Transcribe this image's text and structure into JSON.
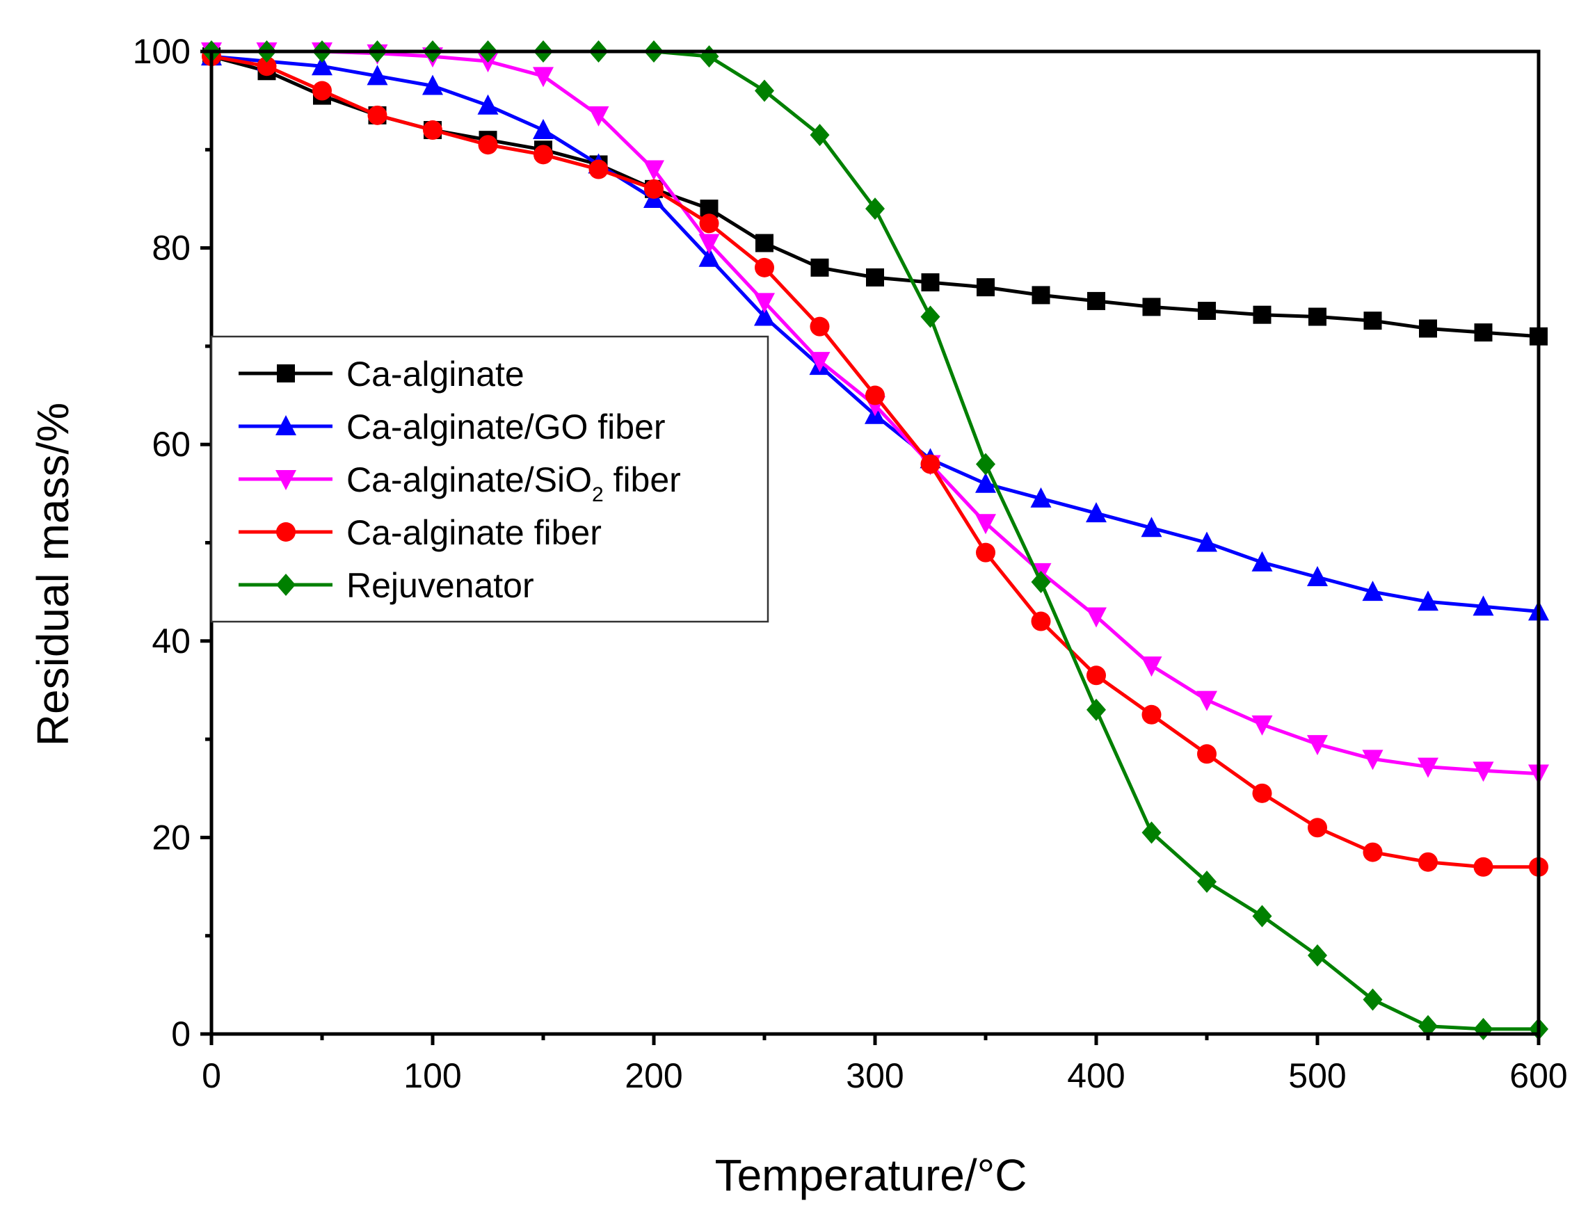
{
  "chart_data": {
    "type": "line",
    "title": "",
    "xlabel": "Temperature/°C",
    "ylabel": "Residual mass/%",
    "xlim": [
      0,
      600
    ],
    "ylim": [
      0,
      100
    ],
    "xticks": [
      0,
      100,
      200,
      300,
      400,
      500,
      600
    ],
    "yticks": [
      0,
      20,
      40,
      60,
      80,
      100
    ],
    "grid": false,
    "legend_position": "middle-left",
    "series": [
      {
        "name": "Ca-alginate",
        "legend_main": "Ca-alginate",
        "legend_sub": "",
        "legend_tail": "",
        "color": "#000000",
        "marker": "square",
        "x": [
          0,
          25,
          50,
          75,
          100,
          125,
          150,
          175,
          200,
          225,
          250,
          275,
          300,
          325,
          350,
          375,
          400,
          425,
          450,
          475,
          500,
          525,
          550,
          575,
          600
        ],
        "y": [
          99.5,
          98,
          95.5,
          93.5,
          92,
          91,
          90,
          88.5,
          86,
          84,
          80.5,
          78,
          77,
          76.5,
          76,
          75.2,
          74.6,
          74,
          73.6,
          73.2,
          73,
          72.6,
          71.8,
          71.4,
          71
        ]
      },
      {
        "name": "Ca-alginate/GO fiber",
        "legend_main": "Ca-alginate/GO fiber",
        "legend_sub": "",
        "legend_tail": "",
        "color": "#0000ff",
        "marker": "triangle-up",
        "x": [
          0,
          25,
          50,
          75,
          100,
          125,
          150,
          175,
          200,
          225,
          250,
          275,
          300,
          325,
          350,
          375,
          400,
          425,
          450,
          475,
          500,
          525,
          550,
          575,
          600
        ],
        "y": [
          99.5,
          99,
          98.5,
          97.5,
          96.5,
          94.5,
          92,
          88.5,
          85,
          79,
          73,
          68,
          63,
          58.5,
          56,
          54.5,
          53,
          51.5,
          50,
          48,
          46.5,
          45,
          44,
          43.5,
          43
        ]
      },
      {
        "name": "Ca-alginate/SiO2 fiber",
        "legend_main": "Ca-alginate/SiO",
        "legend_sub": "2",
        "legend_tail": " fiber",
        "color": "#ff00ff",
        "marker": "triangle-down",
        "x": [
          0,
          25,
          50,
          75,
          100,
          125,
          150,
          175,
          200,
          225,
          250,
          275,
          300,
          325,
          350,
          375,
          400,
          425,
          450,
          475,
          500,
          525,
          550,
          575,
          600
        ],
        "y": [
          100,
          100,
          100,
          99.8,
          99.5,
          99,
          97.5,
          93.5,
          88,
          80.5,
          74.5,
          68.5,
          64,
          58,
          52,
          47,
          42.5,
          37.5,
          34,
          31.5,
          29.5,
          28,
          27.2,
          26.8,
          26.5
        ]
      },
      {
        "name": "Ca-alginate fiber",
        "legend_main": "Ca-alginate fiber",
        "legend_sub": "",
        "legend_tail": "",
        "color": "#ff0000",
        "marker": "circle",
        "x": [
          0,
          25,
          50,
          75,
          100,
          125,
          150,
          175,
          200,
          225,
          250,
          275,
          300,
          325,
          350,
          375,
          400,
          425,
          450,
          475,
          500,
          525,
          550,
          575,
          600
        ],
        "y": [
          99.5,
          98.5,
          96,
          93.5,
          92,
          90.5,
          89.5,
          88,
          86,
          82.5,
          78,
          72,
          65,
          58,
          49,
          42,
          36.5,
          32.5,
          28.5,
          24.5,
          21,
          18.5,
          17.5,
          17,
          17
        ]
      },
      {
        "name": "Rejuvenator",
        "legend_main": "Rejuvenator",
        "legend_sub": "",
        "legend_tail": "",
        "color": "#008000",
        "marker": "diamond",
        "x": [
          0,
          25,
          50,
          75,
          100,
          125,
          150,
          175,
          200,
          225,
          250,
          275,
          300,
          325,
          350,
          375,
          400,
          425,
          450,
          475,
          500,
          525,
          550,
          575,
          600
        ],
        "y": [
          100,
          100,
          100,
          100,
          100,
          100,
          100,
          100,
          100,
          99.5,
          96,
          91.5,
          84,
          73,
          58,
          46,
          33,
          20.5,
          15.5,
          12,
          8,
          3.5,
          0.8,
          0.5,
          0.5
        ]
      }
    ]
  }
}
